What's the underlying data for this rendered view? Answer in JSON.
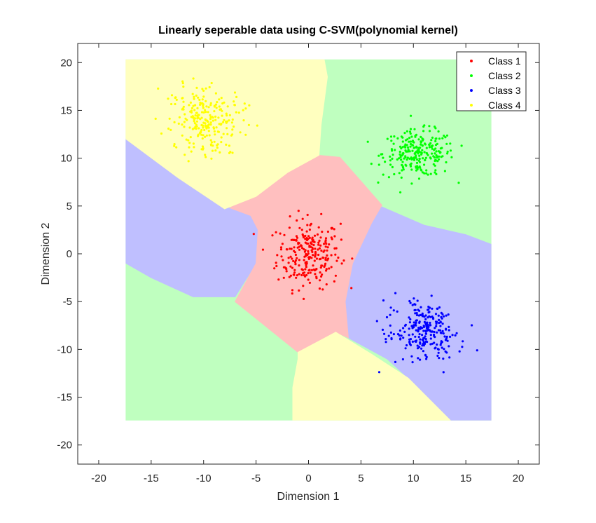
{
  "chart_data": {
    "type": "scatter",
    "title": "Linearly seperable data using C-SVM(polynomial kernel)",
    "xlabel": "Dimension 1",
    "ylabel": "Dimension 2",
    "xlim": [
      -22,
      22
    ],
    "ylim": [
      -22,
      22
    ],
    "xticks": [
      -20,
      -15,
      -10,
      -5,
      0,
      5,
      10,
      15,
      20
    ],
    "yticks": [
      -20,
      -15,
      -10,
      -5,
      0,
      5,
      10,
      15,
      20
    ],
    "xtick_labels": [
      "-20",
      "-15",
      "-10",
      "-5",
      "0",
      "5",
      "10",
      "15",
      "20"
    ],
    "ytick_labels": [
      "-20",
      "-15",
      "-10",
      "-5",
      "0",
      "5",
      "10",
      "15",
      "20"
    ],
    "grid": false,
    "legend_position": "top-right",
    "series": [
      {
        "name": "Class 1",
        "color": "#ff0000",
        "region_color": "#ffbfbf",
        "center": [
          0,
          0
        ],
        "spread": [
          1.5,
          1.8
        ],
        "count": 250
      },
      {
        "name": "Class 2",
        "color": "#00ff00",
        "region_color": "#bfffbf",
        "center": [
          10.5,
          10.5
        ],
        "spread": [
          1.7,
          1.2
        ],
        "count": 250
      },
      {
        "name": "Class 3",
        "color": "#0000ff",
        "region_color": "#bfbfff",
        "center": [
          11,
          -8
        ],
        "spread": [
          1.7,
          1.5
        ],
        "rotation_deg": -35,
        "count": 250
      },
      {
        "name": "Class 4",
        "color": "#ffff00",
        "region_color": "#ffffbf",
        "center": [
          -10,
          14
        ],
        "spread": [
          1.8,
          1.7
        ],
        "rotation_deg": -30,
        "count": 250
      }
    ],
    "decision_regions": [
      {
        "class": "Class 4",
        "polygon": [
          [
            -17.3,
            20.3
          ],
          [
            -18,
            20.3
          ],
          [
            -17.3,
            12
          ],
          [
            -12,
            8
          ],
          [
            -8,
            4.8
          ],
          [
            -6.5,
            4.8
          ],
          [
            -2,
            8.5
          ],
          [
            1,
            10
          ],
          [
            3.5,
            10.5
          ],
          [
            4.5,
            10.3
          ],
          [
            1.5,
            10.3
          ],
          [
            1.2,
            10.3
          ],
          [
            1.5,
            10.3
          ],
          [
            1.4,
            10.3
          ],
          [
            1.5,
            10.3
          ],
          [
            1.4,
            10.3
          ],
          [
            1.5,
            10.3
          ],
          [
            1.5,
            10.3
          ],
          [
            1.4,
            10.3
          ],
          [
            1.0,
            10.3
          ],
          [
            1.5,
            10.3
          ]
        ]
      }
    ]
  }
}
